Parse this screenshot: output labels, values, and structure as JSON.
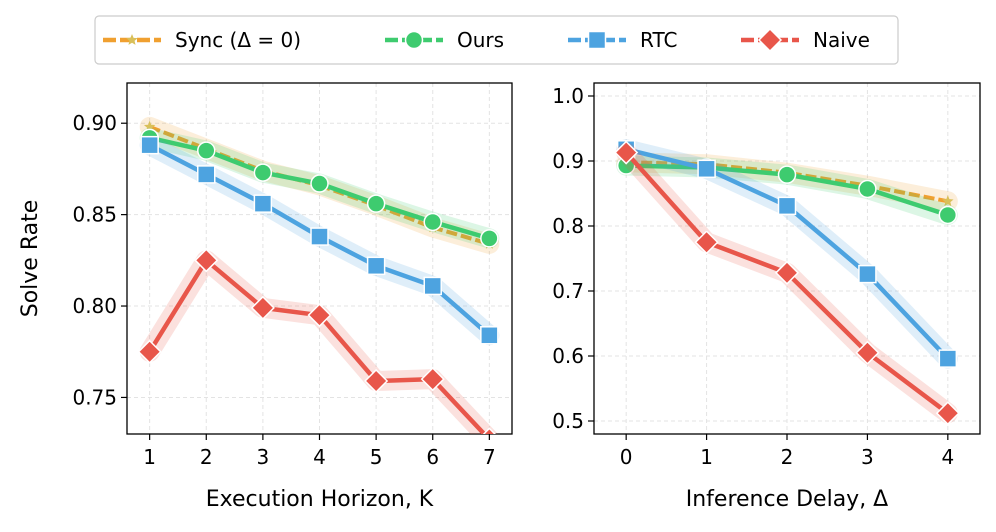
{
  "chart_data": [
    {
      "type": "line",
      "xlabel": "Execution Horizon, K",
      "ylabel": "Solve Rate",
      "x": [
        1,
        2,
        3,
        4,
        5,
        6,
        7
      ],
      "xlim": [
        0.6,
        7.4
      ],
      "ylim": [
        0.73,
        0.922
      ],
      "xticks": [
        1,
        2,
        3,
        4,
        5,
        6,
        7
      ],
      "yticks": [
        0.75,
        0.8,
        0.85,
        0.9
      ],
      "ytick_labels": [
        "0.75",
        "0.80",
        "0.85",
        "0.90"
      ],
      "grid": true,
      "series": [
        {
          "name": "Sync (Δ = 0)",
          "values": [
            0.898,
            0.886,
            0.874,
            0.866,
            0.855,
            0.843,
            0.834
          ]
        },
        {
          "name": "Ours",
          "values": [
            0.892,
            0.885,
            0.873,
            0.867,
            0.856,
            0.846,
            0.837
          ]
        },
        {
          "name": "RTC",
          "values": [
            0.888,
            0.872,
            0.856,
            0.838,
            0.822,
            0.811,
            0.784
          ]
        },
        {
          "name": "Naive",
          "values": [
            0.775,
            0.825,
            0.799,
            0.795,
            0.759,
            0.76,
            0.727
          ]
        }
      ]
    },
    {
      "type": "line",
      "xlabel": "Inference Delay, Δ",
      "ylabel": "",
      "x": [
        0,
        1,
        2,
        3,
        4
      ],
      "xlim": [
        -0.4,
        4.4
      ],
      "ylim": [
        0.48,
        1.02
      ],
      "xticks": [
        0,
        1,
        2,
        3,
        4
      ],
      "yticks": [
        0.5,
        0.6,
        0.7,
        0.8,
        0.9,
        1.0
      ],
      "ytick_labels": [
        "0.5",
        "0.6",
        "0.7",
        "0.8",
        "0.9",
        "1.0"
      ],
      "grid": true,
      "series": [
        {
          "name": "Sync (Δ = 0)",
          "values": [
            0.898,
            0.895,
            0.882,
            0.862,
            0.838
          ]
        },
        {
          "name": "Ours",
          "values": [
            0.893,
            0.89,
            0.879,
            0.857,
            0.817
          ]
        },
        {
          "name": "RTC",
          "values": [
            0.918,
            0.888,
            0.831,
            0.726,
            0.596
          ]
        },
        {
          "name": "Naive",
          "values": [
            0.913,
            0.775,
            0.728,
            0.605,
            0.512
          ]
        }
      ]
    }
  ],
  "legend": {
    "position": "top-center",
    "entries": [
      {
        "label": "Sync (Δ = 0)",
        "color": "#f0a030",
        "marker": "star",
        "dashed": true
      },
      {
        "label": "Ours",
        "color": "#3ecb6f",
        "marker": "circle",
        "dashed": true
      },
      {
        "label": "RTC",
        "color": "#4da3e0",
        "marker": "square",
        "dashed": true
      },
      {
        "label": "Naive",
        "color": "#e8564a",
        "marker": "diamond",
        "dashed": true
      }
    ]
  },
  "colors": {
    "Sync (Δ = 0)": "#f0a030",
    "Ours": "#3ecb6f",
    "RTC": "#4da3e0",
    "Naive": "#e8564a"
  }
}
